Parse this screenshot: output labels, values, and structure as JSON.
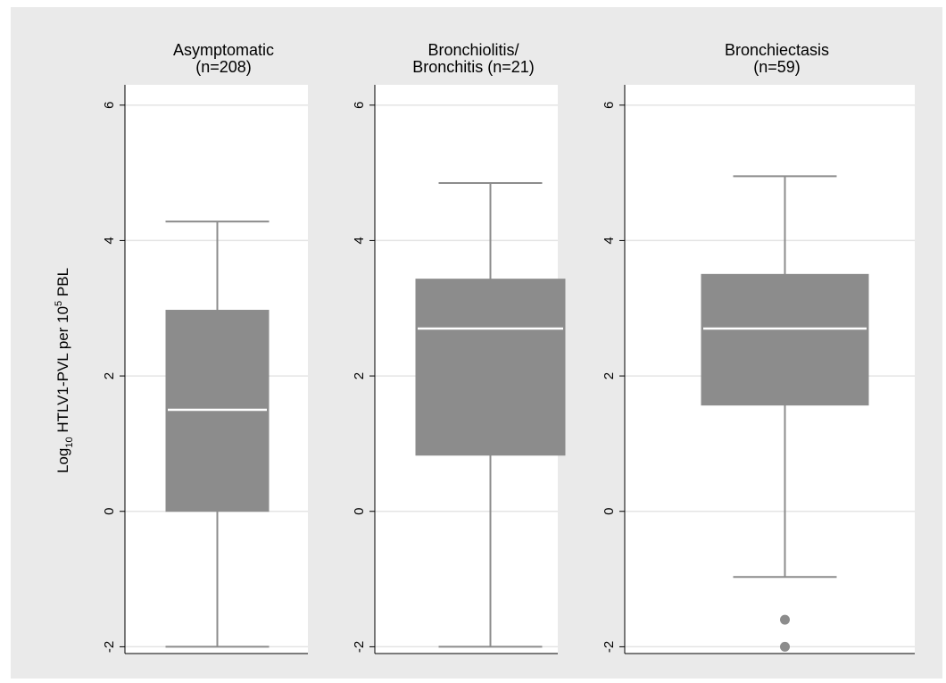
{
  "chart_data": {
    "type": "box",
    "ylabel": {
      "prefix": "Log",
      "subscript": "10",
      "middle": " HTLV1-PVL per 10",
      "superscript": "5",
      "suffix": " PBL"
    },
    "ylim": [
      -2.1,
      6.3
    ],
    "yticks": [
      "-2",
      "0",
      "2",
      "4",
      "6"
    ],
    "grid": true,
    "panels": [
      {
        "title": [
          "Asymptomatic",
          "(n=208)"
        ],
        "box": {
          "whisker_low": -2.0,
          "q1": 0.0,
          "median": 1.5,
          "q3": 2.97,
          "whisker_high": 4.28
        },
        "outliers": []
      },
      {
        "title": [
          "Bronchiolitis/",
          "Bronchitis (n=21)"
        ],
        "box": {
          "whisker_low": -2.0,
          "q1": 0.83,
          "median": 2.7,
          "q3": 3.43,
          "whisker_high": 4.85
        },
        "outliers": []
      },
      {
        "title": [
          "Bronchiectasis",
          "(n=59)"
        ],
        "box": {
          "whisker_low": -0.97,
          "q1": 1.57,
          "median": 2.7,
          "q3": 3.5,
          "whisker_high": 4.95
        },
        "outliers": [
          -1.6,
          -2.0
        ]
      }
    ],
    "colors": {
      "box": "#8c8c8c",
      "median": "#ffffff",
      "whisker": "#8c8c8c",
      "grid": "#e4e4e4",
      "panel": "#ffffff",
      "frame": "#eaeaea"
    }
  }
}
